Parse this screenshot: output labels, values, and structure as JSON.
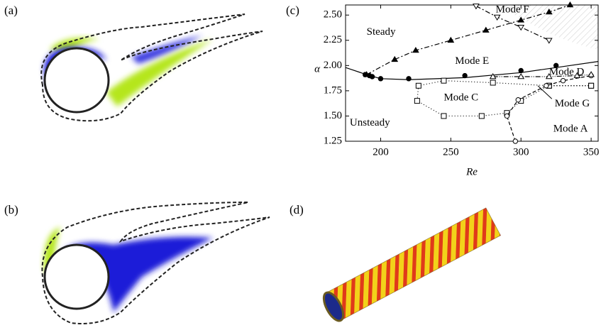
{
  "panel_labels": [
    "(a)",
    "(b)",
    "(c)",
    "(d)"
  ],
  "chart_data": {
    "type": "line",
    "x_label": "Re",
    "y_label": "α",
    "xlim": [
      175,
      355
    ],
    "ylim": [
      1.25,
      2.6
    ],
    "xticks": [
      200,
      250,
      300,
      350
    ],
    "yticks": [
      1.25,
      {
        "value": 1.5,
        "label": "1.50"
      },
      1.75,
      {
        "value": 2,
        "label": "2.00"
      },
      2.25,
      {
        "value": 2.5,
        "label": "2.50"
      }
    ],
    "annotations": [
      "Steady",
      "Unsteady",
      "Mode F",
      "Mode E",
      "Mode D",
      "Mode C",
      "Mode G",
      "Mode A"
    ],
    "series": [
      {
        "dash": "solid",
        "marker": null,
        "x": [
          175,
          190,
          200,
          220,
          260,
          300,
          325,
          355
        ],
        "values": [
          1.98,
          1.91,
          1.87,
          1.86,
          1.88,
          1.93,
          1.98,
          2.04
        ]
      },
      {
        "dash": null,
        "marker": "filled-circle",
        "x": [
          189,
          192,
          194,
          200,
          220,
          260,
          300,
          325
        ],
        "values": [
          1.91,
          1.9,
          1.89,
          1.87,
          1.87,
          1.9,
          1.95,
          2.0
        ]
      },
      {
        "dash": "7 3 2 3",
        "marker": "triangle",
        "x": [
          190,
          210,
          225,
          250,
          275,
          300,
          320,
          335
        ],
        "values": [
          1.91,
          2.06,
          2.15,
          2.25,
          2.35,
          2.45,
          2.53,
          2.6
        ]
      },
      {
        "dash": "7 3 2 3",
        "marker": "inverted-triangle",
        "x": [
          268,
          283,
          300,
          320
        ],
        "values": [
          2.59,
          2.48,
          2.38,
          2.25
        ]
      },
      {
        "dash": "1 3",
        "marker": "square",
        "x": [
          350,
          320,
          280,
          245,
          227,
          226,
          245,
          272,
          290,
          300,
          320,
          350
        ],
        "values": [
          1.8,
          1.8,
          1.83,
          1.85,
          1.8,
          1.65,
          1.5,
          1.5,
          1.53,
          1.65,
          1.8,
          1.8
        ]
      },
      {
        "dash": "5 3",
        "marker": "open-circle",
        "x": [
          296,
          290,
          298,
          318,
          330,
          350
        ],
        "values": [
          1.25,
          1.5,
          1.66,
          1.8,
          1.85,
          1.9
        ]
      },
      {
        "dash": "7 2 1 2 1 2",
        "marker": "open-triangle",
        "x": [
          280,
          300,
          320,
          340,
          350
        ],
        "values": [
          1.89,
          1.89,
          1.89,
          1.9,
          1.91
        ]
      }
    ]
  }
}
